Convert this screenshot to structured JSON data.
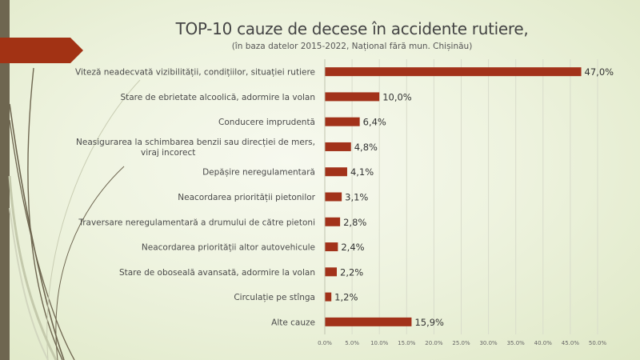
{
  "chart_data": {
    "type": "bar",
    "orientation": "horizontal",
    "title": "TOP-10 cauze de decese în accidente rutiere,",
    "subtitle": "(în baza datelor 2015-2022, Național fără mun. Chișinău)",
    "categories": [
      [
        "Viteză neadecvată vizibilității, condițiilor, situației rutiere"
      ],
      [
        "Stare de ebrietate alcoolică, adormire la volan"
      ],
      [
        "Conducere imprudentă"
      ],
      [
        "Neasigurarea la schimbarea benzii sau direcției de mers,",
        "viraj incorect"
      ],
      [
        "Depășire neregulamentară"
      ],
      [
        "Neacordarea priorității pietonilor"
      ],
      [
        "Traversare neregulamentară a drumului de către pietoni"
      ],
      [
        "Neacordarea priorității altor autovehicule"
      ],
      [
        "Stare de oboseală avansată, adormire la volan"
      ],
      [
        "Circulație pe stînga"
      ],
      [
        "Alte cauze"
      ]
    ],
    "values": [
      47.0,
      10.0,
      6.4,
      4.8,
      4.1,
      3.1,
      2.8,
      2.4,
      2.2,
      1.2,
      15.9
    ],
    "data_labels": [
      "47,0%",
      "10,0%",
      "6,4%",
      "4,8%",
      "4,1%",
      "3,1%",
      "2,8%",
      "2,4%",
      "2,2%",
      "1,2%",
      "15,9%"
    ],
    "xlim": [
      0,
      50
    ],
    "x_ticks": [
      "0.0%",
      "5.0%",
      "10.0%",
      "15.0%",
      "20.0%",
      "25.0%",
      "30.0%",
      "35.0%",
      "40.0%",
      "45.0%",
      "50.0%"
    ],
    "grid": "vertical",
    "legend": "none",
    "bar_color": "#a2321a"
  },
  "theme": {
    "accent": "#a23214",
    "sidebar": "#6e6650"
  }
}
